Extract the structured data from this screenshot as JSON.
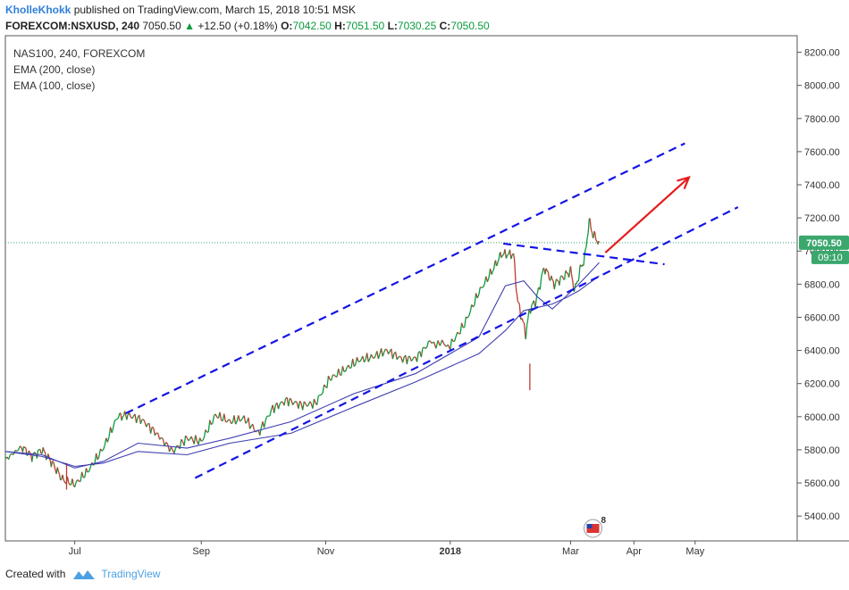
{
  "header": {
    "author": "KholleKhokk",
    "published": "published on TradingView.com, March 15, 2018 10:51 MSK",
    "symbol": "FOREXCOM:NSXUSD, 240",
    "last": "7050.50",
    "change_arrow": "▲",
    "change": "+12.50 (+0.18%)",
    "o_label": "O:",
    "o": "7042.50",
    "h_label": "H:",
    "h": "7051.50",
    "l_label": "L:",
    "l": "7030.25",
    "c_label": "C:",
    "c": "7050.50"
  },
  "legend": [
    "NAS100, 240, FOREXCOM",
    "EMA (200, close)",
    "EMA (100, close)"
  ],
  "footer": {
    "created_with": "Created with",
    "brand": "TradingView"
  },
  "colors": {
    "up": "#0a9b3e",
    "down": "#c0392b",
    "channel": "#1414e6",
    "arrow": "#e51c1c",
    "ema": "#3f3fb0",
    "price_badge": "#3aa76d"
  },
  "chart_data": {
    "type": "line",
    "title": "NAS100, 240, FOREXCOM",
    "ylim": [
      5250,
      8300
    ],
    "y_ticks": [
      "8200.00",
      "8000.00",
      "7800.00",
      "7600.00",
      "7400.00",
      "7200.00",
      "7000.00",
      "6800.00",
      "6600.00",
      "6400.00",
      "6200.00",
      "6000.00",
      "5800.00",
      "5600.00",
      "5400.00"
    ],
    "x_range": [
      "2017-05-28",
      "2018-06-20"
    ],
    "x_ticks": [
      {
        "date": "2017-07-01",
        "label": "Jul",
        "bold": false
      },
      {
        "date": "2017-09-01",
        "label": "Sep",
        "bold": false
      },
      {
        "date": "2017-11-01",
        "label": "Nov",
        "bold": false
      },
      {
        "date": "2018-01-01",
        "label": "2018",
        "bold": true
      },
      {
        "date": "2018-03-01",
        "label": "Mar",
        "bold": false
      },
      {
        "date": "2018-04-01",
        "label": "Apr",
        "bold": false
      },
      {
        "date": "2018-05-01",
        "label": "May",
        "bold": false
      }
    ],
    "price": {
      "name": "NAS100",
      "x": [
        "2017-05-28",
        "2017-06-05",
        "2017-06-10",
        "2017-06-15",
        "2017-06-20",
        "2017-06-25",
        "2017-07-01",
        "2017-07-08",
        "2017-07-15",
        "2017-07-22",
        "2017-07-27",
        "2017-08-03",
        "2017-08-10",
        "2017-08-18",
        "2017-08-25",
        "2017-09-01",
        "2017-09-08",
        "2017-09-15",
        "2017-09-22",
        "2017-09-29",
        "2017-10-06",
        "2017-10-13",
        "2017-10-20",
        "2017-10-27",
        "2017-11-03",
        "2017-11-10",
        "2017-11-17",
        "2017-11-24",
        "2017-12-01",
        "2017-12-08",
        "2017-12-15",
        "2017-12-22",
        "2018-01-01",
        "2018-01-08",
        "2018-01-15",
        "2018-01-22",
        "2018-01-26",
        "2018-02-01",
        "2018-02-03",
        "2018-02-05",
        "2018-02-07",
        "2018-02-09",
        "2018-02-12",
        "2018-02-16",
        "2018-02-21",
        "2018-02-26",
        "2018-03-01",
        "2018-03-03",
        "2018-03-06",
        "2018-03-08",
        "2018-03-10",
        "2018-03-12",
        "2018-03-15"
      ],
      "values": [
        5740,
        5820,
        5760,
        5800,
        5720,
        5620,
        5590,
        5680,
        5810,
        6000,
        6010,
        5980,
        5900,
        5790,
        5870,
        5850,
        6010,
        5970,
        5990,
        5900,
        6050,
        6100,
        6070,
        6080,
        6230,
        6280,
        6340,
        6360,
        6400,
        6350,
        6350,
        6450,
        6430,
        6560,
        6750,
        6890,
        6980,
        6980,
        6700,
        6600,
        6500,
        6650,
        6700,
        6900,
        6800,
        6850,
        6880,
        6760,
        6900,
        6960,
        7180,
        7100,
        7050.5
      ],
      "lows": [
        "2017-06-27",
        5560,
        "2018-02-09",
        6160
      ]
    },
    "ema_100": {
      "name": "EMA (100, close)",
      "x": [
        "2017-05-28",
        "2017-06-15",
        "2017-07-01",
        "2017-07-15",
        "2017-08-01",
        "2017-08-25",
        "2017-09-15",
        "2017-10-15",
        "2017-11-15",
        "2017-12-15",
        "2018-01-15",
        "2018-01-28",
        "2018-02-06",
        "2018-02-13",
        "2018-02-20",
        "2018-02-27",
        "2018-03-05",
        "2018-03-15"
      ],
      "values": [
        5790,
        5770,
        5690,
        5730,
        5840,
        5810,
        5870,
        5970,
        6140,
        6260,
        6480,
        6790,
        6820,
        6720,
        6650,
        6730,
        6800,
        6930
      ]
    },
    "ema_200": {
      "name": "EMA (200, close)",
      "x": [
        "2017-05-28",
        "2017-06-15",
        "2017-07-01",
        "2017-07-15",
        "2017-08-01",
        "2017-08-25",
        "2017-09-15",
        "2017-10-15",
        "2017-11-15",
        "2017-12-15",
        "2018-01-15",
        "2018-01-28",
        "2018-02-06",
        "2018-02-13",
        "2018-02-20",
        "2018-02-27",
        "2018-03-05",
        "2018-03-15"
      ],
      "values": [
        5790,
        5760,
        5700,
        5720,
        5790,
        5770,
        5840,
        5900,
        6060,
        6210,
        6380,
        6520,
        6640,
        6660,
        6680,
        6720,
        6760,
        6850
      ]
    },
    "annotations": {
      "channel_upper": {
        "x": [
          "2017-07-26",
          "2018-04-26"
        ],
        "y": [
          6020,
          7650
        ]
      },
      "channel_lower": {
        "x": [
          "2017-08-29",
          "2018-05-22"
        ],
        "y": [
          5630,
          7265
        ]
      },
      "neck_line": {
        "x": [
          "2018-01-27",
          "2018-04-16"
        ],
        "y": [
          7045,
          6920
        ]
      },
      "projection_arrow": {
        "x": [
          "2018-03-18",
          "2018-04-28"
        ],
        "y": [
          6990,
          7445
        ]
      }
    },
    "last_price_label": "7050.50",
    "countdown_label": "09:10",
    "event_badge": "8"
  }
}
